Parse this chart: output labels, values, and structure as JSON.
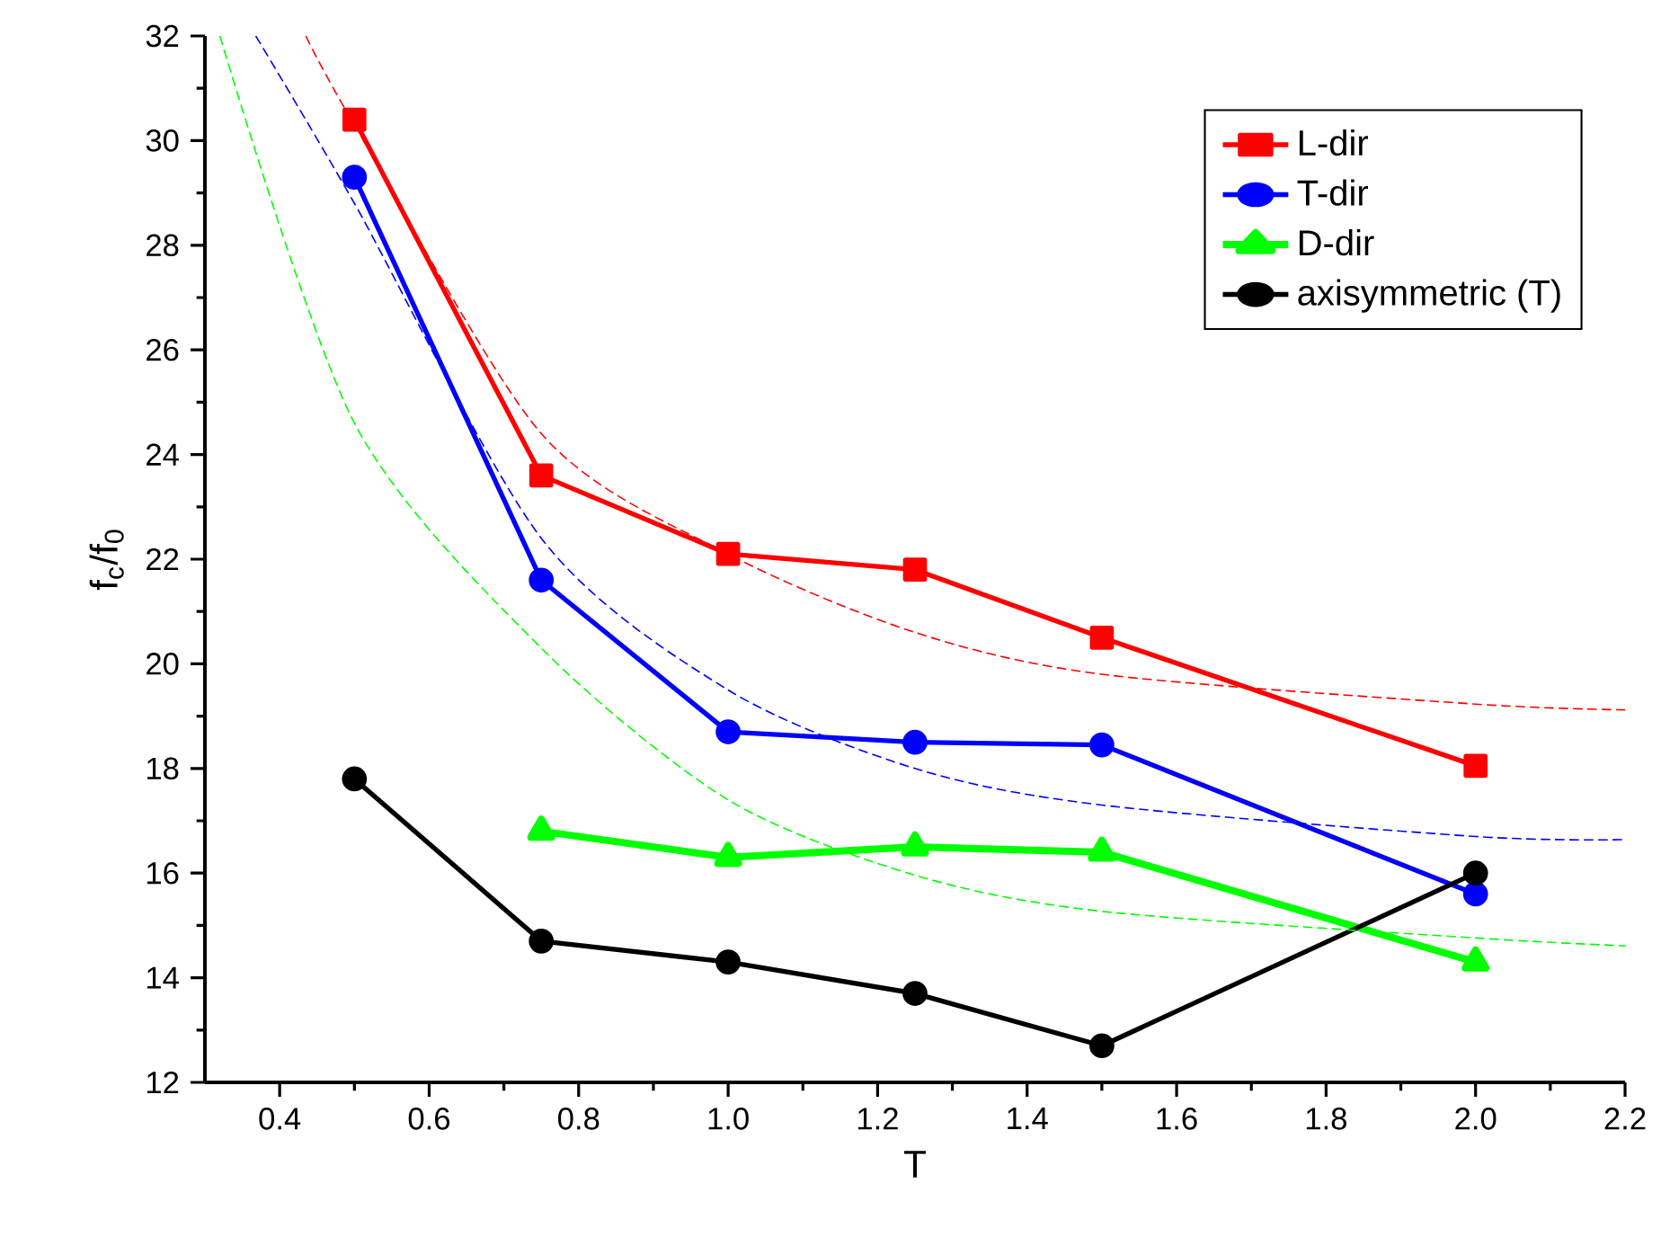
{
  "chart_data": {
    "type": "line",
    "xlabel": "T",
    "ylabel": "f$_{c}$/f$_{0}$",
    "xlim": [
      0.3,
      2.2
    ],
    "xticks": [
      0.4,
      0.6,
      0.8,
      {
        "value": 1.0,
        "label": "1.0"
      },
      1.2,
      1.4,
      1.6,
      1.8,
      {
        "value": 2.0,
        "label": "2.0"
      },
      2.2
    ],
    "ylim": [
      12,
      32
    ],
    "yticks": [
      12,
      14,
      16,
      18,
      20,
      22,
      24,
      26,
      28,
      30,
      32
    ],
    "legend": "top right",
    "grid": false,
    "series": [
      {
        "name": "L-dir",
        "color": "#ff0000",
        "marker": "square",
        "line_style": "solid",
        "x": [
          0.5,
          0.75,
          1.0,
          1.25,
          1.5,
          2.0
        ],
        "values": [
          30.4,
          23.6,
          22.1,
          21.8,
          20.5,
          18.05
        ]
      },
      {
        "name": "T-dir",
        "color": "#0000ff",
        "marker": "circle",
        "line_style": "solid",
        "x": [
          0.5,
          0.75,
          1.0,
          1.25,
          1.5,
          2.0
        ],
        "values": [
          29.3,
          21.6,
          18.7,
          18.5,
          18.45,
          15.6
        ]
      },
      {
        "name": "D-dir",
        "color": "#00ff00",
        "marker": "triangle",
        "line_style": "solid",
        "x": [
          0.75,
          1.0,
          1.25,
          1.5,
          2.0
        ],
        "values": [
          16.8,
          16.3,
          16.5,
          16.4,
          14.3
        ]
      },
      {
        "name": "axisymmetric (T)",
        "color": "#000000",
        "marker": "circle",
        "line_style": "solid",
        "x": [
          0.5,
          0.75,
          1.0,
          1.25,
          1.5,
          2.0
        ],
        "values": [
          17.8,
          14.7,
          14.3,
          13.7,
          12.7,
          16.0
        ]
      },
      {
        "color": "#ff0000",
        "marker": "none",
        "line_style": "dashed",
        "x": [
          0.435,
          0.5,
          0.75,
          1.0,
          1.25,
          1.5,
          2.0,
          2.2
        ],
        "values": [
          32,
          30.3,
          24.4,
          22.1,
          20.6,
          19.8,
          19.23,
          19.12
        ]
      },
      {
        "color": "#0000ff",
        "marker": "none",
        "line_style": "dashed",
        "x": [
          0.368,
          0.5,
          0.75,
          1.0,
          1.25,
          1.5,
          2.0,
          2.2
        ],
        "values": [
          32,
          28.8,
          22.4,
          19.5,
          18.0,
          17.3,
          16.7,
          16.64
        ]
      },
      {
        "color": "#00ff00",
        "marker": "none",
        "line_style": "dashed",
        "x": [
          0.32,
          0.5,
          0.75,
          1.0,
          1.25,
          1.5,
          2.0,
          2.2
        ],
        "values": [
          32,
          24.6,
          20.3,
          17.4,
          15.96,
          15.27,
          14.76,
          14.61
        ]
      }
    ]
  }
}
